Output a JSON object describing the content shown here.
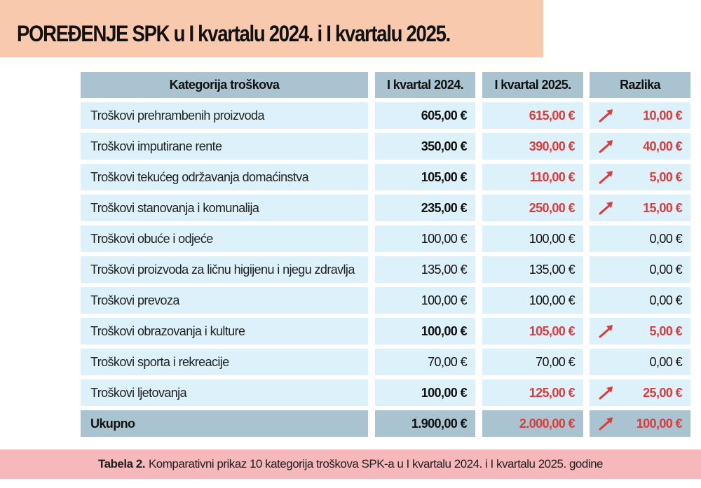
{
  "title": "POREĐENJE SPK u I kvartalu 2024. i I kvartalu 2025.",
  "table": {
    "headers": [
      "Kategorija troškova",
      "I kvartal 2024.",
      "I kvartal 2025.",
      "Razlika"
    ],
    "rows": [
      {
        "category": "Troškovi prehrambenih proizvoda",
        "q2024": "605,00 €",
        "q2025": "615,00 €",
        "diff": "10,00 €",
        "increase": true
      },
      {
        "category": "Troškovi imputirane rente",
        "q2024": "350,00 €",
        "q2025": "390,00 €",
        "diff": "40,00 €",
        "increase": true
      },
      {
        "category": "Troškovi tekućeg održavanja domaćinstva",
        "q2024": "105,00 €",
        "q2025": "110,00 €",
        "diff": "5,00 €",
        "increase": true
      },
      {
        "category": "Troškovi stanovanja i komunalija",
        "q2024": "235,00 €",
        "q2025": "250,00 €",
        "diff": "15,00 €",
        "increase": true
      },
      {
        "category": "Troškovi obuće i odjeće",
        "q2024": "100,00 €",
        "q2025": "100,00 €",
        "diff": "0,00 €",
        "increase": false
      },
      {
        "category": "Troškovi proizvoda za ličnu higijenu i njegu zdravlja",
        "q2024": "135,00 €",
        "q2025": "135,00 €",
        "diff": "0,00 €",
        "increase": false
      },
      {
        "category": "Troškovi prevoza",
        "q2024": "100,00 €",
        "q2025": "100,00 €",
        "diff": "0,00 €",
        "increase": false
      },
      {
        "category": "Troškovi obrazovanja i kulture",
        "q2024": "100,00 €",
        "q2025": "105,00 €",
        "diff": "5,00 €",
        "increase": true
      },
      {
        "category": "Troškovi sporta i rekreacije",
        "q2024": "70,00 €",
        "q2025": "70,00 €",
        "diff": "0,00 €",
        "increase": false
      },
      {
        "category": "Troškovi ljetovanja",
        "q2024": "100,00 €",
        "q2025": "125,00 €",
        "diff": "25,00 €",
        "increase": true
      }
    ],
    "total": {
      "category": "Ukupno",
      "q2024": "1.900,00 €",
      "q2025": "2.000,00 €",
      "diff": "100,00 €",
      "increase": true
    }
  },
  "caption": {
    "label": "Tabela 2.",
    "text": "Komparativni prikaz 10 kategorija troškova SPK-a u I kvartalu 2024. i I kvartalu 2025. godine"
  },
  "colors": {
    "title_band": "#f8c9ad",
    "header": "#a9c4d0",
    "row": "#ddf1fa",
    "increase": "#e0393a",
    "caption_band": "#f6b8ba"
  },
  "icons": {
    "increase": "arrow-up-right-icon"
  }
}
